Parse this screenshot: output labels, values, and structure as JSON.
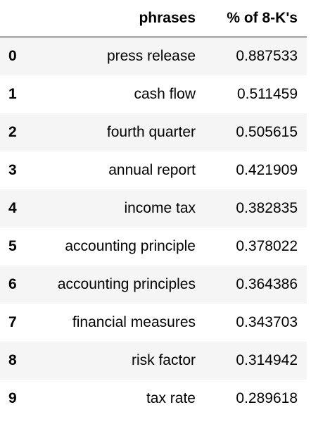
{
  "table": {
    "headers": {
      "index": "",
      "phrases": "phrases",
      "pct": "% of 8-K's"
    },
    "rows": [
      {
        "index": "0",
        "phrase": "press release",
        "pct": "0.887533"
      },
      {
        "index": "1",
        "phrase": "cash flow",
        "pct": "0.511459"
      },
      {
        "index": "2",
        "phrase": "fourth quarter",
        "pct": "0.505615"
      },
      {
        "index": "3",
        "phrase": "annual report",
        "pct": "0.421909"
      },
      {
        "index": "4",
        "phrase": "income tax",
        "pct": "0.382835"
      },
      {
        "index": "5",
        "phrase": "accounting principle",
        "pct": "0.378022"
      },
      {
        "index": "6",
        "phrase": "accounting principles",
        "pct": "0.364386"
      },
      {
        "index": "7",
        "phrase": "financial measures",
        "pct": "0.343703"
      },
      {
        "index": "8",
        "phrase": "risk factor",
        "pct": "0.314942"
      },
      {
        "index": "9",
        "phrase": "tax rate",
        "pct": "0.289618"
      }
    ]
  }
}
